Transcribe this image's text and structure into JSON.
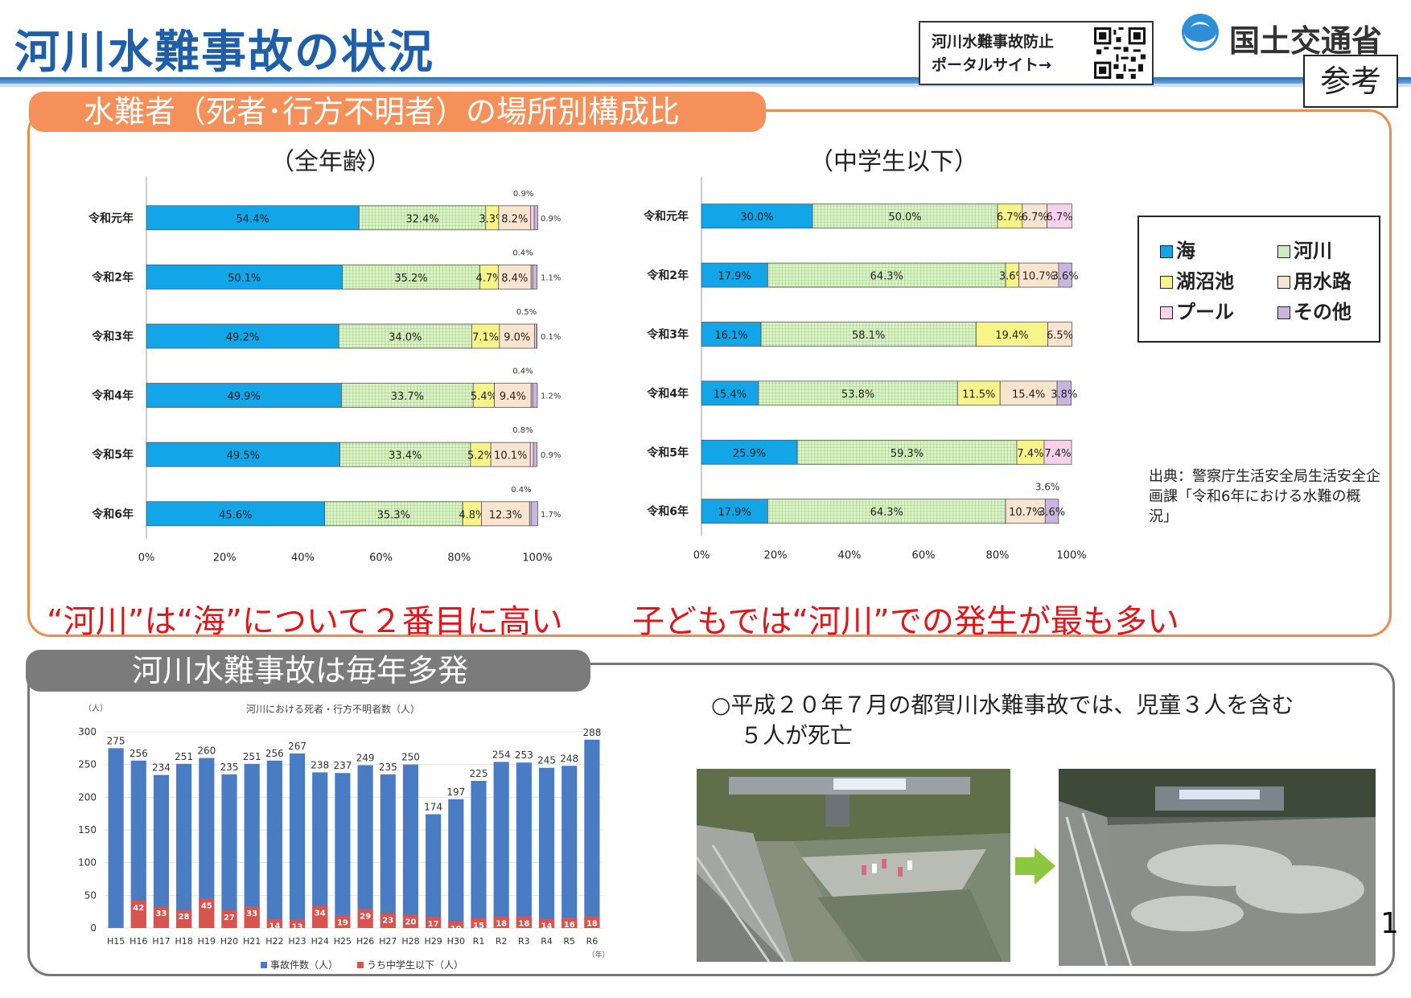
{
  "header": {
    "title": "河川水難事故の状況",
    "portal_line1": "河川水難事故防止",
    "portal_line2": "ポータルサイト→",
    "ministry": "国土交通省",
    "badge": "参考"
  },
  "section1": {
    "label": "水難者（死者･行方不明者）の場所別構成比",
    "left_subtitle": "（全年齢）",
    "right_subtitle": "（中学生以下）",
    "left_message": "“河川”は“海”について２番目に高い",
    "right_message": "子どもでは“河川”での発生が最も多い",
    "source": "出典：警察庁生活安全局生活安全企画課「令和6年における水難の概況」"
  },
  "legend": [
    {
      "label": "海",
      "color": "#12a5e8"
    },
    {
      "label": "河川",
      "color": "#cfeac0"
    },
    {
      "label": "湖沼池",
      "color": "#f7f58a"
    },
    {
      "label": "用水路",
      "color": "#f8e4cf"
    },
    {
      "label": "プール",
      "color": "#f8d2ec"
    },
    {
      "label": "その他",
      "color": "#c9b6e0"
    }
  ],
  "section2": {
    "label": "河川水難事故は毎年多発",
    "accident_line1": "○平成２０年７月の都賀川水難事故では、児童３人を含む",
    "accident_line2": "５人が死亡"
  },
  "page_number": "1",
  "chart_data": [
    {
      "type": "bar",
      "orientation": "horizontal-stacked-100",
      "title": "（全年齢）",
      "categories": [
        "令和元年",
        "令和2年",
        "令和3年",
        "令和4年",
        "令和5年",
        "令和6年"
      ],
      "series": [
        {
          "name": "海",
          "values": [
            54.4,
            50.1,
            49.2,
            49.9,
            49.5,
            45.6
          ]
        },
        {
          "name": "河川",
          "values": [
            32.4,
            35.2,
            34.0,
            33.7,
            33.4,
            35.3
          ]
        },
        {
          "name": "湖沼池",
          "values": [
            3.3,
            4.7,
            7.1,
            5.4,
            5.2,
            4.8
          ]
        },
        {
          "name": "用水路",
          "values": [
            8.2,
            8.4,
            9.0,
            9.4,
            10.1,
            12.3
          ]
        },
        {
          "name": "プール",
          "values": [
            0.9,
            0.4,
            0.5,
            0.4,
            0.8,
            0.4
          ]
        },
        {
          "name": "その他",
          "values": [
            0.9,
            1.1,
            0.1,
            1.2,
            0.9,
            1.7
          ]
        }
      ],
      "labels": [
        [
          "54.4%",
          "32.4%",
          "3.3%",
          "8.2%",
          "0.9%",
          "0.9%"
        ],
        [
          "50.1%",
          "35.2%",
          "4.7%",
          "8.4%",
          "0.4%",
          "1.1%"
        ],
        [
          "49.2%",
          "34.0%",
          "7.1%",
          "9.0%",
          "0.5%",
          "0.1%"
        ],
        [
          "49.9%",
          "33.7%",
          "5.4%",
          "9.4%",
          "0.4%",
          "1.2%"
        ],
        [
          "49.5%",
          "33.4%",
          "5.2%",
          "10.1%",
          "0.8%",
          "0.9%"
        ],
        [
          "45.6%",
          "35.3%",
          "4.8%",
          "12.3%",
          "0.4%",
          "1.7%"
        ]
      ],
      "xticks": [
        "0%",
        "20%",
        "40%",
        "60%",
        "80%",
        "100%"
      ],
      "xlim": [
        0,
        100
      ]
    },
    {
      "type": "bar",
      "orientation": "horizontal-stacked-100",
      "title": "（中学生以下）",
      "categories": [
        "令和元年",
        "令和2年",
        "令和3年",
        "令和4年",
        "令和5年",
        "令和6年"
      ],
      "series": [
        {
          "name": "海",
          "values": [
            30.0,
            17.9,
            16.1,
            15.4,
            25.9,
            17.9
          ]
        },
        {
          "name": "河川",
          "values": [
            50.0,
            64.3,
            58.1,
            53.8,
            59.3,
            64.3
          ]
        },
        {
          "name": "湖沼池",
          "values": [
            6.7,
            3.6,
            19.4,
            11.5,
            7.4,
            0
          ]
        },
        {
          "name": "用水路",
          "values": [
            6.7,
            10.7,
            6.5,
            15.4,
            0,
            10.7
          ]
        },
        {
          "name": "プール",
          "values": [
            6.7,
            0,
            0,
            0,
            7.4,
            0
          ]
        },
        {
          "name": "その他",
          "values": [
            0,
            3.6,
            0,
            3.8,
            0,
            3.6
          ]
        }
      ],
      "labels": [
        [
          "30.0%",
          "50.0%",
          "6.7%",
          "6.7%",
          "6.7%",
          ""
        ],
        [
          "17.9%",
          "64.3%",
          "3.6%",
          "10.7%",
          "",
          "3.6%"
        ],
        [
          "16.1%",
          "58.1%",
          "19.4%",
          "6.5%",
          "",
          ""
        ],
        [
          "15.4%",
          "53.8%",
          "11.5%",
          "15.4%",
          "",
          "3.8%"
        ],
        [
          "25.9%",
          "59.3%",
          "7.4%",
          "",
          "7.4%",
          ""
        ],
        [
          "17.9%",
          "64.3%",
          "",
          "10.7%",
          "",
          "3.6%"
        ]
      ],
      "extra_label": "3.6%",
      "xticks": [
        "0%",
        "20%",
        "40%",
        "60%",
        "80%",
        "100%"
      ],
      "xlim": [
        0,
        100
      ]
    },
    {
      "type": "bar",
      "title": "河川における死者・行方不明者数（人）",
      "unit_y": "（人）",
      "unit_x": "（年）",
      "categories": [
        "H15",
        "H16",
        "H17",
        "H18",
        "H19",
        "H20",
        "H21",
        "H22",
        "H23",
        "H24",
        "H25",
        "H26",
        "H27",
        "H28",
        "H29",
        "H30",
        "R1",
        "R2",
        "R3",
        "R4",
        "R5",
        "R6"
      ],
      "series": [
        {
          "name": "事故件数（人）",
          "color": "#4a7cc4",
          "values": [
            275,
            256,
            234,
            251,
            260,
            235,
            251,
            256,
            267,
            238,
            237,
            249,
            235,
            250,
            174,
            197,
            225,
            254,
            253,
            245,
            248,
            288
          ]
        },
        {
          "name": "うち中学生以下（人）",
          "color": "#d9534f",
          "values": [
            null,
            42,
            33,
            28,
            45,
            27,
            33,
            14,
            13,
            34,
            19,
            29,
            23,
            20,
            17,
            10,
            15,
            18,
            18,
            14,
            16,
            18
          ]
        }
      ],
      "yticks": [
        "0",
        "50",
        "100",
        "150",
        "200",
        "250",
        "300"
      ],
      "ylim": [
        0,
        300
      ]
    }
  ]
}
